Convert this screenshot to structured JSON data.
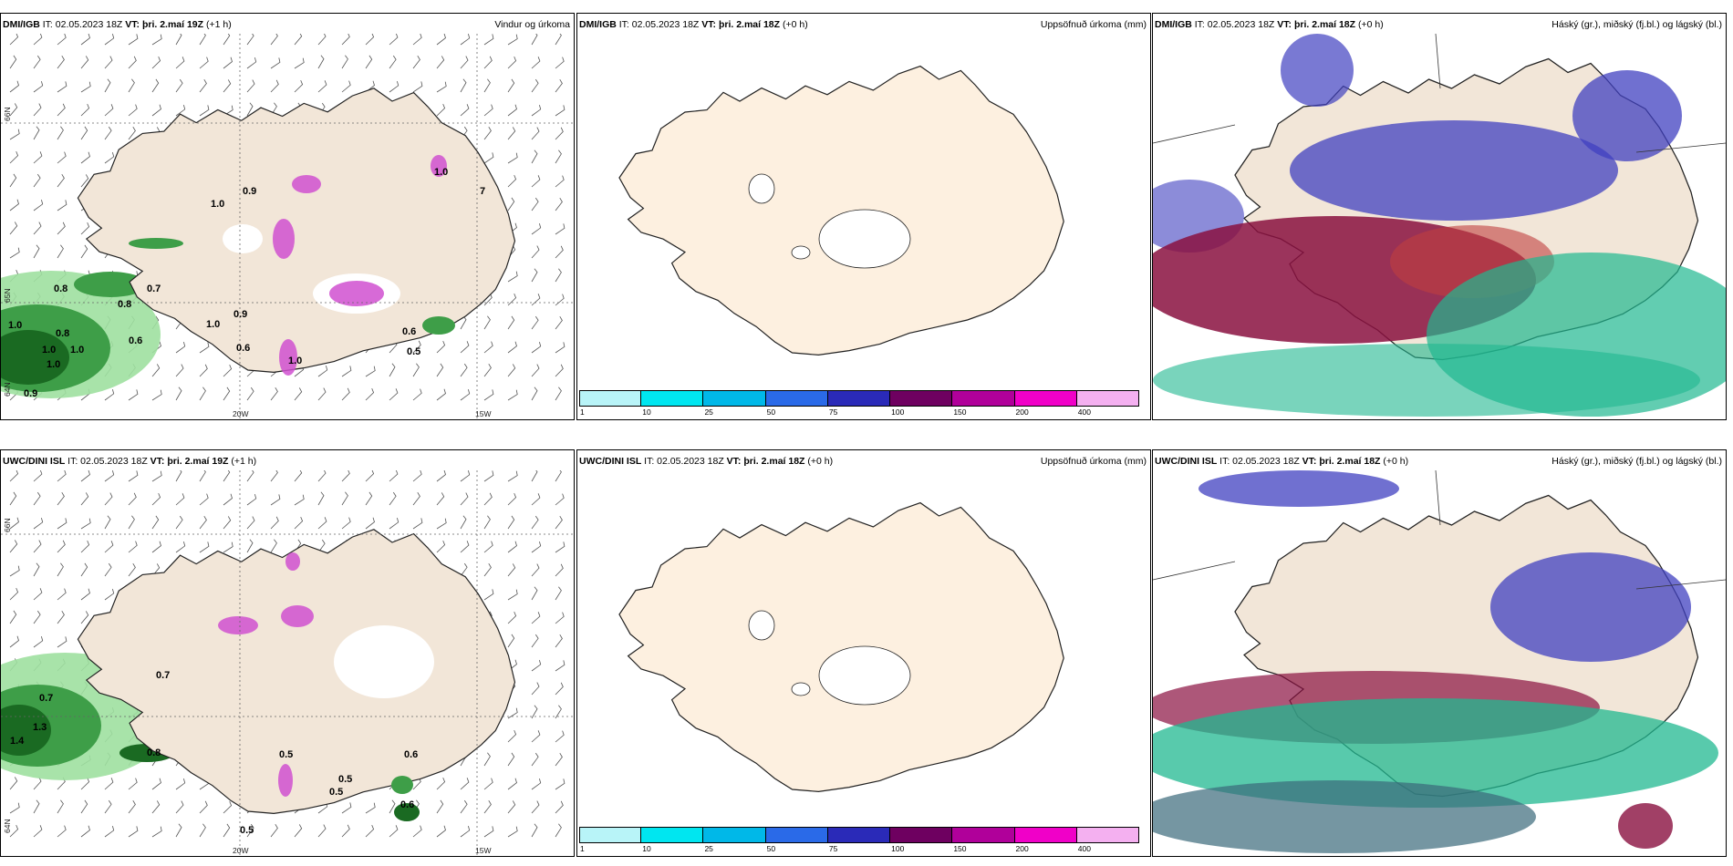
{
  "panels": [
    {
      "model": "DMI/IGB",
      "it": "IT: 02.05.2023 18Z",
      "vt_label": "VT:",
      "vt": "þri. 2.maí 19Z",
      "lead": "(+1 h)",
      "product": "Vindur og úrkoma"
    },
    {
      "model": "DMI/IGB",
      "it": "IT: 02.05.2023 18Z",
      "vt_label": "VT:",
      "vt": "þri. 2.maí 18Z",
      "lead": "(+0 h)",
      "product": "Uppsöfnuð úrkoma (mm)"
    },
    {
      "model": "DMI/IGB",
      "it": "IT: 02.05.2023 18Z",
      "vt_label": "VT:",
      "vt": "þri. 2.maí 18Z",
      "lead": "(+0 h)",
      "product": "Háský (gr.), miðský (fj.bl.) og lágský (bl.)"
    },
    {
      "model": "UWC/DINI ISL",
      "it": "IT: 02.05.2023 18Z",
      "vt_label": "VT:",
      "vt": "þri. 2.maí 19Z",
      "lead": "(+1 h)",
      "product": ""
    },
    {
      "model": "UWC/DINI ISL",
      "it": "IT: 02.05.2023 18Z",
      "vt_label": "VT:",
      "vt": "þri. 2.maí 18Z",
      "lead": "(+0 h)",
      "product": "Uppsöfnuð úrkoma (mm)"
    },
    {
      "model": "UWC/DINI ISL",
      "it": "IT: 02.05.2023 18Z",
      "vt_label": "VT:",
      "vt": "þri. 2.maí 18Z",
      "lead": "(+0 h)",
      "product": "Háský (gr.), miðský (fj.bl.) og lágský (bl.)"
    }
  ],
  "axis_labels": {
    "lat66": "66N",
    "lat65": "65N",
    "lat64": "64N",
    "lon20": "20W",
    "lon15": "15W"
  },
  "colorbar": {
    "ticks": [
      "1",
      "10",
      "25",
      "50",
      "75",
      "100",
      "150",
      "200",
      "400"
    ],
    "colors": [
      "#b8f4f8",
      "#00e6f0",
      "#00b8e8",
      "#2a6ae8",
      "#2a2ab8",
      "#6e0060",
      "#b0009a",
      "#f000c8",
      "#f4b0f0"
    ]
  },
  "precip_values_top": [
    "0.8",
    "1.0",
    "0.8",
    "1.0",
    "0.7",
    "0.8",
    "0.9",
    "1.0",
    "1.0",
    "1.0",
    "0.9",
    "0.6",
    "0.6",
    "0.9",
    "1.0",
    "0.6",
    "0.5",
    "1.0",
    "7",
    "1.0"
  ],
  "precip_values_bottom": [
    "0.7",
    "0.7",
    "1.3",
    "1.4",
    "0.8",
    "0.6",
    "0.5",
    "0.5",
    "0.5",
    "0.5",
    "0.6"
  ],
  "colors": {
    "land": "#f2e6d8",
    "land2": "#fdf0e0",
    "precip_green": "#1a8a2a",
    "precip_light": "#9ee0a0",
    "precip_pink": "#d050d0",
    "cloud_red": "#8a1040",
    "cloud_blue": "#4040c0",
    "cloud_teal": "#20b890"
  }
}
